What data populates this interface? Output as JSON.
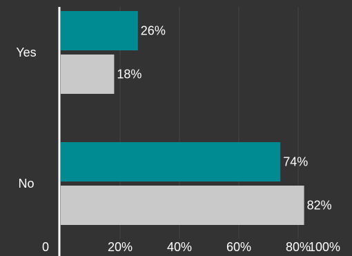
{
  "chart_data": {
    "type": "bar",
    "orientation": "horizontal",
    "categories": [
      "Yes",
      "No"
    ],
    "series": [
      {
        "values": [
          26,
          74
        ],
        "color": "#008b93"
      },
      {
        "values": [
          18,
          82
        ],
        "color": "#c9c9c9"
      }
    ],
    "data_labels": [
      [
        "26%",
        "74%"
      ],
      [
        "18%",
        "82%"
      ]
    ],
    "xlim": [
      0,
      100
    ],
    "x_ticks": [
      0,
      20,
      40,
      60,
      80,
      100
    ],
    "x_tick_labels": [
      "0",
      "20%",
      "40%",
      "60%",
      "80%",
      "100%"
    ],
    "grid": true,
    "legend": "none",
    "background": "#333333",
    "axis_color": "#ffffff",
    "grid_color": "#444444"
  }
}
